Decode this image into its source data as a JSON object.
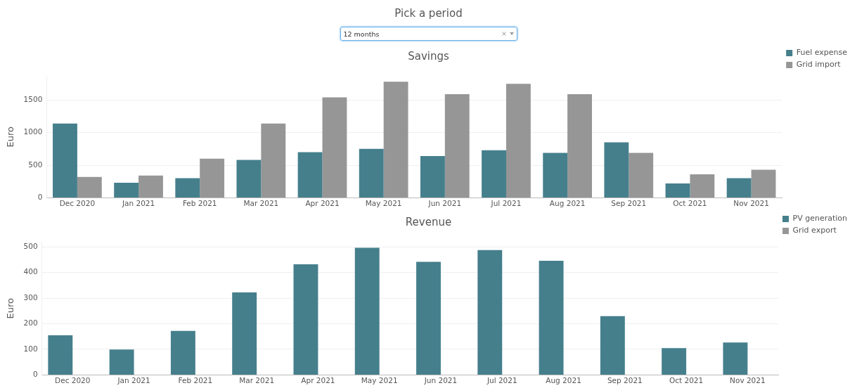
{
  "chart_data": [
    {
      "type": "other",
      "title": "Pick a period",
      "annotations": [
        "12 months"
      ]
    },
    {
      "type": "bar",
      "title": "Savings",
      "ylabel": "Euro",
      "categories": [
        "Dec 2020",
        "Jan 2021",
        "Feb 2021",
        "Mar 2021",
        "Apr 2021",
        "May 2021",
        "Jun 2021",
        "Jul 2021",
        "Aug 2021",
        "Sep 2021",
        "Oct 2021",
        "Nov 2021"
      ],
      "series": [
        {
          "name": "Fuel expense",
          "color": "#457f8c",
          "values": [
            1140,
            230,
            300,
            580,
            700,
            750,
            640,
            730,
            690,
            850,
            220,
            300
          ]
        },
        {
          "name": "Grid import",
          "color": "#969696",
          "values": [
            320,
            340,
            600,
            1140,
            1540,
            1780,
            1590,
            1750,
            1590,
            690,
            360,
            430
          ]
        }
      ],
      "ylim": [
        0,
        1870
      ],
      "yticks": [
        0,
        500,
        1000,
        1500
      ],
      "grid": "y",
      "legend": "top right"
    },
    {
      "type": "bar",
      "title": "Revenue",
      "ylabel": "Euro",
      "categories": [
        "Dec 2020",
        "Jan 2021",
        "Feb 2021",
        "Mar 2021",
        "Apr 2021",
        "May 2021",
        "Jun 2021",
        "Jul 2021",
        "Aug 2021",
        "Sep 2021",
        "Oct 2021",
        "Nov 2021"
      ],
      "series": [
        {
          "name": "PV generation",
          "color": "#457f8c",
          "values": [
            155,
            99,
            172,
            322,
            432,
            497,
            442,
            488,
            446,
            230,
            105,
            127
          ]
        },
        {
          "name": "Grid export",
          "color": "#969696",
          "values": [
            0,
            0,
            0,
            0,
            0,
            0,
            0,
            0,
            0,
            0,
            0,
            0
          ]
        }
      ],
      "ylim": [
        0,
        520
      ],
      "yticks": [
        0,
        100,
        200,
        300,
        400,
        500
      ],
      "grid": "y",
      "legend": "top right"
    }
  ]
}
